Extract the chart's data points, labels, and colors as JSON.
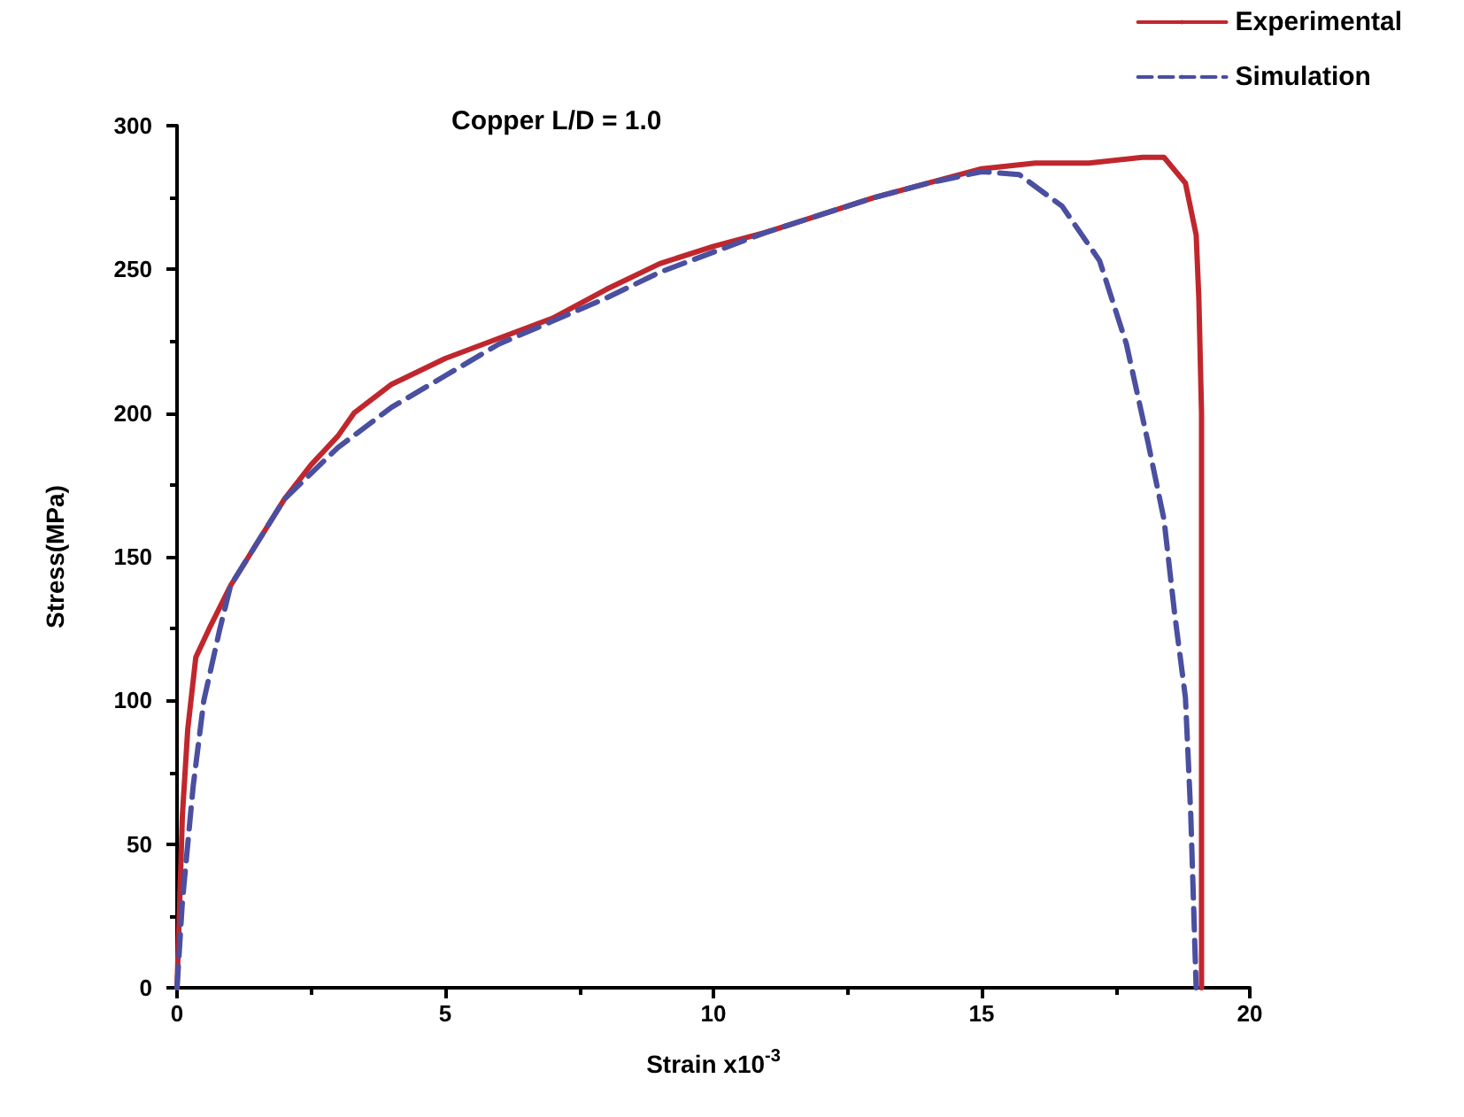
{
  "chart_data": {
    "type": "line",
    "title": "Copper L/D = 1.0",
    "xlabel": "Strain x10$^{-3}$",
    "ylabel": "Stress(MPa)",
    "xlim": [
      0,
      20
    ],
    "xticks": [
      0,
      5,
      10,
      15,
      20
    ],
    "ylim": [
      0,
      300
    ],
    "yticks": [
      0,
      50,
      100,
      150,
      200,
      250,
      300
    ],
    "grid": false,
    "legend": "top right",
    "marker": "none",
    "series": [
      {
        "name": "Experimental",
        "color": "#c0272d",
        "line_style": "solid",
        "x": [
          0,
          0.1,
          0.2,
          0.35,
          0.6,
          1,
          1.5,
          2,
          2.5,
          3,
          3.3,
          4,
          5,
          6,
          7,
          8,
          9,
          10,
          11,
          12,
          13,
          14,
          15,
          16,
          17,
          18,
          18.4,
          18.8,
          19,
          19.05,
          19.1,
          19.1,
          19.1
        ],
        "values": [
          0,
          60,
          90,
          115,
          125,
          140,
          155,
          170,
          182,
          192,
          200,
          210,
          219,
          226,
          233,
          243,
          252,
          258,
          263,
          269,
          275,
          280,
          285,
          287,
          287,
          289,
          289,
          280,
          262,
          240,
          200,
          100,
          0
        ]
      },
      {
        "name": "Simulation",
        "color": "#4a4fa0",
        "line_style": "dashed",
        "x": [
          0,
          0.1,
          0.3,
          0.5,
          0.8,
          1,
          1.5,
          2,
          3,
          4,
          5,
          6,
          7,
          8,
          9,
          10,
          11,
          12,
          13,
          14,
          15,
          15.7,
          16.5,
          17.2,
          17.7,
          18.1,
          18.4,
          18.6,
          18.8,
          18.9,
          19
        ],
        "values": [
          0,
          30,
          70,
          100,
          125,
          140,
          155,
          170,
          188,
          202,
          213,
          224,
          232,
          240,
          249,
          256,
          263,
          269,
          275,
          280,
          284,
          283,
          272,
          253,
          224,
          190,
          163,
          130,
          101,
          60,
          0
        ]
      }
    ]
  }
}
